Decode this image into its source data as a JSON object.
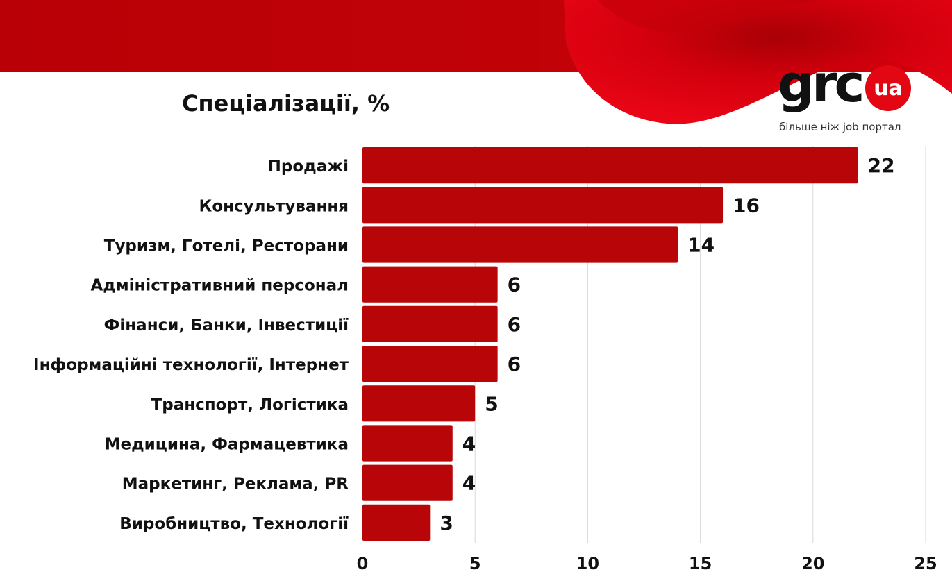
{
  "logo": {
    "text": "grc",
    "badge": "ua",
    "tagline": "більше ніж job портал"
  },
  "colors": {
    "bar": "#b70508",
    "banner": "#b90006",
    "accent": "#e30613",
    "grid": "#d9d9d9"
  },
  "chart_data": {
    "type": "bar",
    "orientation": "horizontal",
    "title": "Спеціалізації, %",
    "categories": [
      "Продажі",
      "Консультування",
      "Туризм, Готелі, Ресторани",
      "Адміністративний персонал",
      "Фінанси, Банки, Інвестиції",
      "Інформаційні технології, Інтернет",
      "Транспорт, Логістика",
      "Медицина, Фармацевтика",
      "Маркетинг, Реклама, PR",
      "Виробництво, Технології"
    ],
    "values": [
      22,
      16,
      14,
      6,
      6,
      6,
      5,
      4,
      4,
      3
    ],
    "xlim": [
      0,
      25
    ],
    "xticks": [
      0,
      5,
      10,
      15,
      20,
      25
    ],
    "grid": true,
    "data_labels": true
  }
}
